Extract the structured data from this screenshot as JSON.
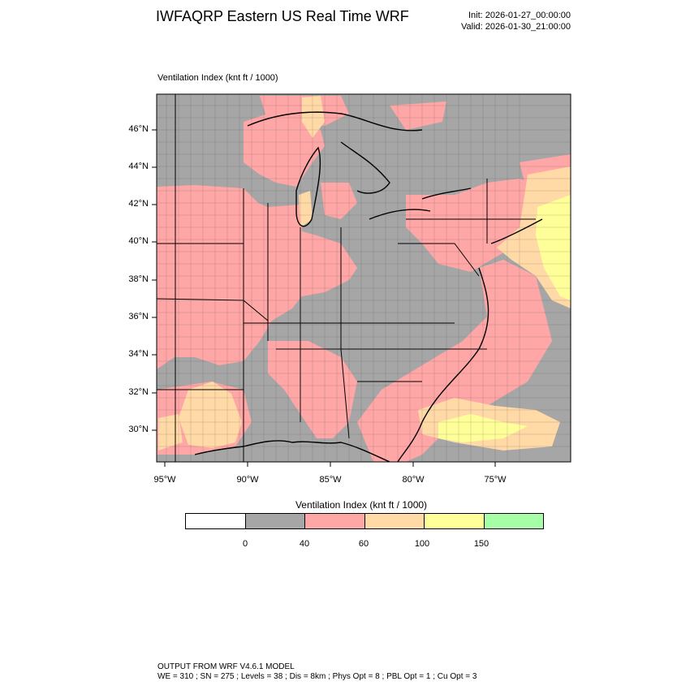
{
  "header": {
    "title": "IWFAQRP Eastern US Real Time WRF",
    "init": "Init: 2026-01-27_00:00:00",
    "valid": "Valid: 2026-01-30_21:00:00"
  },
  "field_label": "Ventilation Index   (knt ft / 1000)",
  "map": {
    "lat_labels": [
      "46°N",
      "44°N",
      "42°N",
      "40°N",
      "38°N",
      "36°N",
      "34°N",
      "32°N",
      "30°N"
    ],
    "lon_labels": [
      "95°W",
      "90°W",
      "85°W",
      "80°W",
      "75°W"
    ],
    "colors": {
      "lt0": "#ffffff",
      "r0_40": "#a6a6a6",
      "r40_60": "#ffa6a6",
      "r60_100": "#ffd9a6",
      "r100_150": "#ffff99",
      "gt150": "#a6ffa6",
      "water_low": "#a6a6a6"
    }
  },
  "legend": {
    "title": "Ventilation Index  (knt ft / 1000)",
    "ticks": [
      "0",
      "40",
      "60",
      "100",
      "150"
    ],
    "colors": [
      "#ffffff",
      "#a6a6a6",
      "#ffa6a6",
      "#ffd9a6",
      "#ffff99",
      "#a6ffa6"
    ]
  },
  "footer": {
    "line1": "OUTPUT FROM WRF V4.6.1 MODEL",
    "line2": "WE = 310 ; SN = 275 ; Levels = 38 ; Dis = 8km ; Phys Opt = 8 ; PBL Opt = 1 ; Cu Opt = 3"
  }
}
